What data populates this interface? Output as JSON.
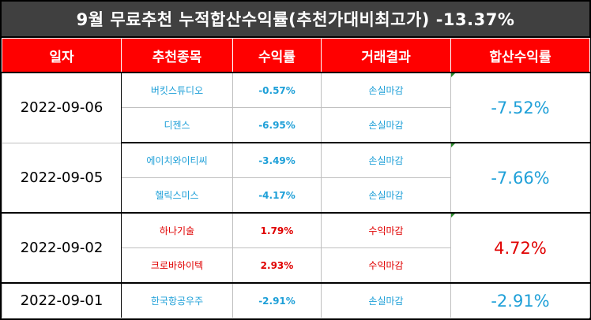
{
  "title": "9월 무료추천 누적합산수익률(추천가대비최고가) -13.37%",
  "headers": [
    "일자",
    "추천종목",
    "수익률",
    "거래결과",
    "합산수익률"
  ],
  "groups": [
    {
      "date": "2022-09-06",
      "total": "-7.52%",
      "total_tone": "neg",
      "rows": [
        {
          "name": "버킷스튜디오",
          "rate": "-0.57%",
          "result": "손실마감",
          "tone": "neg"
        },
        {
          "name": "디젠스",
          "rate": "-6.95%",
          "result": "손실마감",
          "tone": "neg"
        }
      ]
    },
    {
      "date": "2022-09-05",
      "total": "-7.66%",
      "total_tone": "neg",
      "rows": [
        {
          "name": "에이치와이티씨",
          "rate": "-3.49%",
          "result": "손실마감",
          "tone": "neg"
        },
        {
          "name": "헬릭스미스",
          "rate": "-4.17%",
          "result": "손실마감",
          "tone": "neg"
        }
      ]
    },
    {
      "date": "2022-09-02",
      "total": "4.72%",
      "total_tone": "pos",
      "rows": [
        {
          "name": "하나기술",
          "rate": "1.79%",
          "result": "수익마감",
          "tone": "pos"
        },
        {
          "name": "크로바하이텍",
          "rate": "2.93%",
          "result": "수익마감",
          "tone": "pos"
        }
      ]
    },
    {
      "date": "2022-09-01",
      "total": "-2.91%",
      "total_tone": "neg",
      "rows": [
        {
          "name": "한국항공우주",
          "rate": "-2.91%",
          "result": "손실마감",
          "tone": "neg"
        }
      ]
    }
  ],
  "colors": {
    "title_bg": "#404040",
    "header_bg": "#ff0000",
    "negative": "#1fa0d8",
    "positive": "#e00000"
  }
}
